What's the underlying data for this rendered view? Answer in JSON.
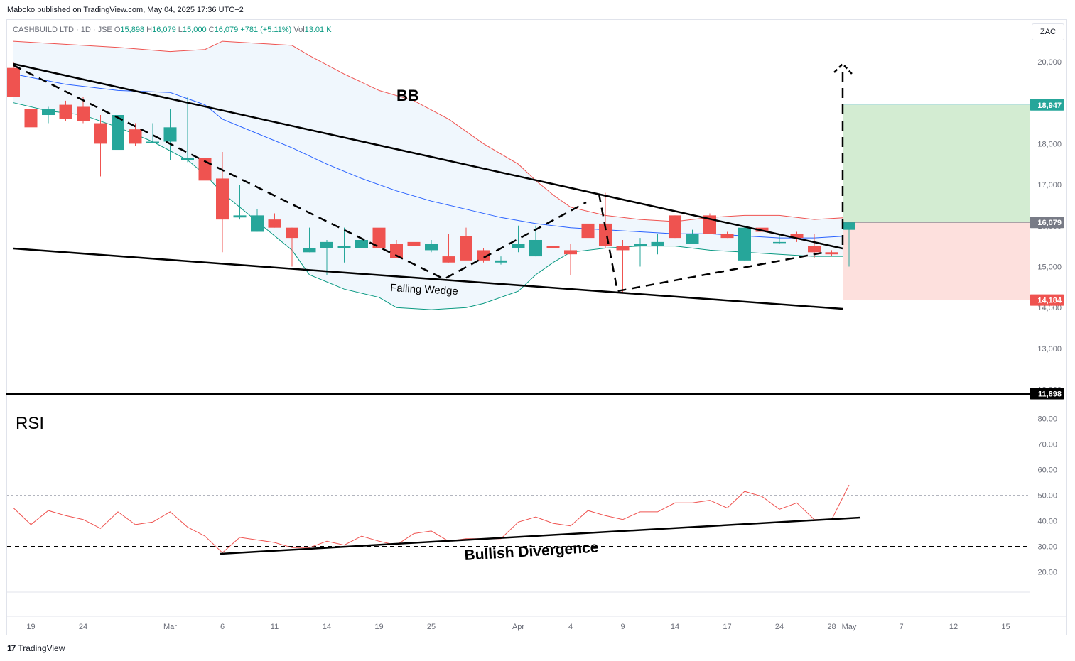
{
  "publisher": "Maboko published on TradingView.com, May 04, 2025 17:36 UTC+2",
  "legend": {
    "symbol": "CASHBUILD LTD · 1D · JSE",
    "open_label": "O",
    "open": "15,898",
    "high_label": "H",
    "high": "16,079",
    "low_label": "L",
    "low": "15,000",
    "close_label": "C",
    "close": "16,079",
    "change": "+781 (+5.11%)",
    "vol_label": "Vol",
    "vol": "13.01 K"
  },
  "currency": "ZAC",
  "footer": {
    "logo": "17",
    "brand": "TradingView"
  },
  "colors": {
    "up": "#26a69a",
    "down": "#ef5350",
    "bb_upper": "#ef5350",
    "bb_basis": "#2962ff",
    "bb_lower": "#089981",
    "bb_fill": "#f0f7fd",
    "rsi": "#ef5350",
    "target": "#d3ecd2",
    "stop": "#fde0dd"
  },
  "annotations": {
    "bb": "BB",
    "wedge": "Falling Wedge",
    "rsi": "RSI",
    "divergence": "Bullish Divergence"
  },
  "price_axis": {
    "ticks": [
      20000,
      19000,
      18000,
      17000,
      16000,
      15000,
      14000,
      13000,
      12000
    ],
    "tick_labels": [
      "20,000",
      "19,000",
      "18,000",
      "17,000",
      "16,000",
      "15,000",
      "14,000",
      "13,000",
      "12,000"
    ]
  },
  "price_badges": [
    {
      "value": 18947,
      "label": "18,947",
      "color": "#26a69a"
    },
    {
      "value": 16079,
      "label": "16,079",
      "color": "#787b86"
    },
    {
      "value": 14184,
      "label": "14,184",
      "color": "#ef5350"
    },
    {
      "value": 11898,
      "label": "11,898",
      "color": "#000000"
    }
  ],
  "rsi_axis": {
    "ticks": [
      80,
      70,
      60,
      50,
      40,
      30,
      20
    ],
    "tick_labels": [
      "80.00",
      "70.00",
      "60.00",
      "50.00",
      "40.00",
      "30.00",
      "20.00"
    ]
  },
  "time_axis": [
    {
      "i": 1,
      "label": "19"
    },
    {
      "i": 4,
      "label": "24"
    },
    {
      "i": 9,
      "label": "Mar"
    },
    {
      "i": 12,
      "label": "6"
    },
    {
      "i": 15,
      "label": "11"
    },
    {
      "i": 18,
      "label": "14"
    },
    {
      "i": 21,
      "label": "19"
    },
    {
      "i": 24,
      "label": "25"
    },
    {
      "i": 29,
      "label": "Apr"
    },
    {
      "i": 32,
      "label": "4"
    },
    {
      "i": 35,
      "label": "9"
    },
    {
      "i": 38,
      "label": "14"
    },
    {
      "i": 41,
      "label": "17"
    },
    {
      "i": 44,
      "label": "24"
    },
    {
      "i": 47,
      "label": "28"
    },
    {
      "i": 48,
      "label": "May"
    },
    {
      "i": 51,
      "label": "7"
    },
    {
      "i": 54,
      "label": "12"
    },
    {
      "i": 57,
      "label": "15"
    }
  ],
  "chart_data": {
    "type": "candlestick",
    "title": "CASHBUILD LTD · 1D · JSE",
    "ylim": [
      11600,
      20600
    ],
    "candles": [
      {
        "i": 0,
        "o": 19850,
        "h": 20000,
        "l": 19150,
        "c": 19150
      },
      {
        "i": 1,
        "o": 18850,
        "h": 18950,
        "l": 18350,
        "c": 18400
      },
      {
        "i": 2,
        "o": 18700,
        "h": 18900,
        "l": 18500,
        "c": 18850
      },
      {
        "i": 3,
        "o": 18950,
        "h": 19050,
        "l": 18550,
        "c": 18600
      },
      {
        "i": 4,
        "o": 18900,
        "h": 19150,
        "l": 18500,
        "c": 18550
      },
      {
        "i": 5,
        "o": 18500,
        "h": 18700,
        "l": 17200,
        "c": 18000
      },
      {
        "i": 6,
        "o": 17850,
        "h": 18700,
        "l": 17850,
        "c": 18700
      },
      {
        "i": 7,
        "o": 18350,
        "h": 18500,
        "l": 17950,
        "c": 18000
      },
      {
        "i": 8,
        "o": 18050,
        "h": 18500,
        "l": 18050,
        "c": 18050
      },
      {
        "i": 9,
        "o": 18050,
        "h": 18850,
        "l": 17600,
        "c": 18400
      },
      {
        "i": 10,
        "o": 17600,
        "h": 19150,
        "l": 17550,
        "c": 17650
      },
      {
        "i": 11,
        "o": 17650,
        "h": 18400,
        "l": 16700,
        "c": 17100
      },
      {
        "i": 12,
        "o": 17150,
        "h": 17800,
        "l": 15350,
        "c": 16150
      },
      {
        "i": 13,
        "o": 16200,
        "h": 17000,
        "l": 16150,
        "c": 16250
      },
      {
        "i": 14,
        "o": 15850,
        "h": 16400,
        "l": 15850,
        "c": 16250
      },
      {
        "i": 15,
        "o": 16150,
        "h": 16300,
        "l": 15950,
        "c": 15950
      },
      {
        "i": 16,
        "o": 15950,
        "h": 15950,
        "l": 15000,
        "c": 15700
      },
      {
        "i": 17,
        "o": 15350,
        "h": 15950,
        "l": 15350,
        "c": 15450
      },
      {
        "i": 18,
        "o": 15450,
        "h": 15650,
        "l": 14800,
        "c": 15600
      },
      {
        "i": 19,
        "o": 15450,
        "h": 15950,
        "l": 15100,
        "c": 15500
      },
      {
        "i": 20,
        "o": 15450,
        "h": 15700,
        "l": 15450,
        "c": 15650
      },
      {
        "i": 21,
        "o": 15950,
        "h": 15950,
        "l": 15450,
        "c": 15450
      },
      {
        "i": 22,
        "o": 15550,
        "h": 15650,
        "l": 15200,
        "c": 15200
      },
      {
        "i": 23,
        "o": 15600,
        "h": 15700,
        "l": 15300,
        "c": 15500
      },
      {
        "i": 24,
        "o": 15400,
        "h": 15650,
        "l": 15350,
        "c": 15550
      },
      {
        "i": 25,
        "o": 15250,
        "h": 15800,
        "l": 15100,
        "c": 15100
      },
      {
        "i": 26,
        "o": 15750,
        "h": 15950,
        "l": 15200,
        "c": 15150
      },
      {
        "i": 27,
        "o": 15400,
        "h": 15450,
        "l": 15100,
        "c": 15150
      },
      {
        "i": 28,
        "o": 15100,
        "h": 15250,
        "l": 15050,
        "c": 15150
      },
      {
        "i": 29,
        "o": 15450,
        "h": 16000,
        "l": 15350,
        "c": 15550
      },
      {
        "i": 30,
        "o": 15250,
        "h": 16000,
        "l": 15250,
        "c": 15650
      },
      {
        "i": 31,
        "o": 15500,
        "h": 15700,
        "l": 15250,
        "c": 15450
      },
      {
        "i": 32,
        "o": 15400,
        "h": 15550,
        "l": 14800,
        "c": 15300
      },
      {
        "i": 33,
        "o": 16050,
        "h": 16650,
        "l": 14350,
        "c": 15700
      },
      {
        "i": 34,
        "o": 16050,
        "h": 16800,
        "l": 15450,
        "c": 15500
      },
      {
        "i": 35,
        "o": 15500,
        "h": 15650,
        "l": 14350,
        "c": 15400
      },
      {
        "i": 36,
        "o": 15500,
        "h": 15700,
        "l": 15000,
        "c": 15550
      },
      {
        "i": 37,
        "o": 15500,
        "h": 15800,
        "l": 15300,
        "c": 15600
      },
      {
        "i": 38,
        "o": 16250,
        "h": 16250,
        "l": 15700,
        "c": 15700
      },
      {
        "i": 39,
        "o": 15550,
        "h": 15900,
        "l": 15550,
        "c": 15800
      },
      {
        "i": 40,
        "o": 16250,
        "h": 16300,
        "l": 15800,
        "c": 15800
      },
      {
        "i": 41,
        "o": 15800,
        "h": 15850,
        "l": 15700,
        "c": 15700
      },
      {
        "i": 42,
        "o": 15150,
        "h": 16000,
        "l": 15150,
        "c": 15950
      },
      {
        "i": 43,
        "o": 15950,
        "h": 16000,
        "l": 15800,
        "c": 15850
      },
      {
        "i": 44,
        "o": 15600,
        "h": 15800,
        "l": 15550,
        "c": 15600
      },
      {
        "i": 45,
        "o": 15800,
        "h": 15850,
        "l": 15600,
        "c": 15700
      },
      {
        "i": 46,
        "o": 15500,
        "h": 15800,
        "l": 15200,
        "c": 15350
      },
      {
        "i": 47,
        "o": 15350,
        "h": 15400,
        "l": 15250,
        "c": 15300
      },
      {
        "i": 48,
        "o": 15898,
        "h": 16079,
        "l": 15000,
        "c": 16079
      }
    ],
    "bollinger": {
      "upper": [
        [
          0,
          20500
        ],
        [
          2,
          20450
        ],
        [
          4,
          20400
        ],
        [
          6,
          20350
        ],
        [
          9,
          20250
        ],
        [
          11,
          20300
        ],
        [
          12,
          20500
        ],
        [
          14,
          20450
        ],
        [
          16,
          20400
        ],
        [
          17,
          20150
        ],
        [
          19,
          19700
        ],
        [
          21,
          19300
        ],
        [
          23,
          19050
        ],
        [
          25,
          18600
        ],
        [
          27,
          18000
        ],
        [
          29,
          17500
        ],
        [
          30,
          17100
        ],
        [
          31,
          16750
        ],
        [
          32,
          16450
        ],
        [
          34,
          16250
        ],
        [
          36,
          16150
        ],
        [
          38,
          16100
        ],
        [
          40,
          16200
        ],
        [
          42,
          16250
        ],
        [
          44,
          16250
        ],
        [
          46,
          16150
        ],
        [
          48,
          16200
        ]
      ],
      "basis": [
        [
          0,
          19700
        ],
        [
          3,
          19450
        ],
        [
          6,
          19300
        ],
        [
          9,
          19250
        ],
        [
          11,
          18950
        ],
        [
          12,
          18600
        ],
        [
          14,
          18250
        ],
        [
          16,
          17900
        ],
        [
          18,
          17500
        ],
        [
          20,
          17150
        ],
        [
          22,
          16850
        ],
        [
          24,
          16600
        ],
        [
          26,
          16400
        ],
        [
          28,
          16200
        ],
        [
          30,
          16050
        ],
        [
          32,
          15950
        ],
        [
          34,
          15900
        ],
        [
          36,
          15850
        ],
        [
          38,
          15800
        ],
        [
          40,
          15800
        ],
        [
          42,
          15750
        ],
        [
          44,
          15700
        ],
        [
          46,
          15700
        ],
        [
          48,
          15750
        ]
      ],
      "lower": [
        [
          0,
          19000
        ],
        [
          2,
          18800
        ],
        [
          4,
          18700
        ],
        [
          6,
          18400
        ],
        [
          8,
          18050
        ],
        [
          10,
          17600
        ],
        [
          11,
          17250
        ],
        [
          12,
          16800
        ],
        [
          14,
          16100
        ],
        [
          16,
          15400
        ],
        [
          17,
          14800
        ],
        [
          19,
          14450
        ],
        [
          21,
          14250
        ],
        [
          22,
          14000
        ],
        [
          24,
          13950
        ],
        [
          26,
          14000
        ],
        [
          27,
          14100
        ],
        [
          29,
          14400
        ],
        [
          30,
          14800
        ],
        [
          31,
          15100
        ],
        [
          32,
          15350
        ],
        [
          34,
          15450
        ],
        [
          36,
          15500
        ],
        [
          38,
          15500
        ],
        [
          40,
          15400
        ],
        [
          42,
          15350
        ],
        [
          44,
          15300
        ],
        [
          46,
          15250
        ],
        [
          48,
          15250
        ]
      ]
    },
    "rsi": [
      [
        0,
        45
      ],
      [
        1,
        38.5
      ],
      [
        2,
        44
      ],
      [
        3,
        42
      ],
      [
        4,
        40.5
      ],
      [
        5,
        37
      ],
      [
        6,
        43.5
      ],
      [
        7,
        38.5
      ],
      [
        8,
        39.5
      ],
      [
        9,
        43.5
      ],
      [
        10,
        37.5
      ],
      [
        11,
        34
      ],
      [
        12,
        27.5
      ],
      [
        13,
        33.5
      ],
      [
        14,
        32.5
      ],
      [
        15,
        31.5
      ],
      [
        16,
        29.5
      ],
      [
        17,
        29.5
      ],
      [
        18,
        32
      ],
      [
        19,
        30.5
      ],
      [
        20,
        34
      ],
      [
        21,
        32
      ],
      [
        22,
        30.5
      ],
      [
        23,
        35
      ],
      [
        24,
        36
      ],
      [
        25,
        32
      ],
      [
        26,
        33
      ],
      [
        27,
        33
      ],
      [
        28,
        33
      ],
      [
        29,
        39.5
      ],
      [
        30,
        41.5
      ],
      [
        31,
        39
      ],
      [
        32,
        38
      ],
      [
        33,
        44
      ],
      [
        34,
        42
      ],
      [
        35,
        40.5
      ],
      [
        36,
        43.5
      ],
      [
        37,
        43.5
      ],
      [
        38,
        47
      ],
      [
        39,
        47
      ],
      [
        40,
        48
      ],
      [
        41,
        45
      ],
      [
        42,
        51.5
      ],
      [
        43,
        49.5
      ],
      [
        44,
        44.5
      ],
      [
        45,
        47
      ],
      [
        46,
        40.5
      ],
      [
        47,
        40.5
      ],
      [
        48,
        54
      ]
    ],
    "rsi_ylim": [
      15,
      85
    ],
    "rsi_levels": {
      "upper": 70,
      "middle": 50,
      "lower": 30
    },
    "projection": {
      "entry": 16079,
      "target": 18947,
      "stop": 14184
    }
  }
}
